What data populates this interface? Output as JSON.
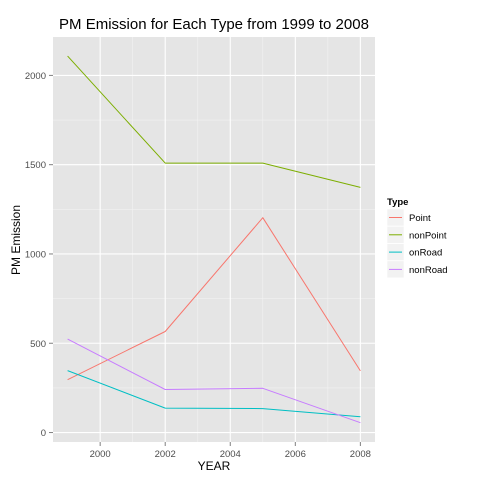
{
  "chart_data": {
    "type": "line",
    "title": "PM Emission for Each Type from 1999 to 2008",
    "xlabel": "YEAR",
    "ylabel": "PM Emission",
    "x": [
      1999,
      2002,
      2005,
      2008
    ],
    "xlim": [
      1998.55,
      2008.45
    ],
    "ylim": [
      -53,
      2215
    ],
    "xticks": [
      2000,
      2002,
      2004,
      2006,
      2008
    ],
    "yticks": [
      0,
      500,
      1000,
      1500,
      2000
    ],
    "grid": true,
    "legend_position": "right",
    "legend_title": "Type",
    "series": [
      {
        "name": "Point",
        "color": "#F8766D",
        "values": [
          296,
          566,
          1203,
          345
        ]
      },
      {
        "name": "nonPoint",
        "color": "#7CAE00",
        "values": [
          2108,
          1509,
          1509,
          1373
        ]
      },
      {
        "name": "onRoad",
        "color": "#00BFC4",
        "values": [
          347,
          137,
          134,
          88
        ]
      },
      {
        "name": "nonRoad",
        "color": "#C77CFF",
        "values": [
          523,
          241,
          248,
          55
        ]
      }
    ]
  }
}
